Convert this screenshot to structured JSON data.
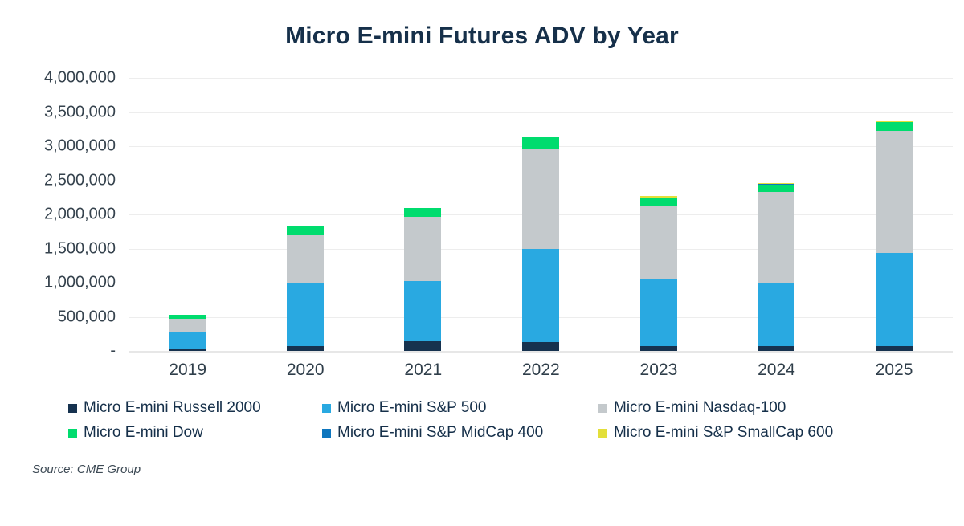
{
  "source": "Source: CME Group",
  "chart_data": {
    "type": "bar",
    "stacked": true,
    "title": "Micro E-mini Futures ADV by Year",
    "xlabel": "",
    "ylabel": "",
    "ylim": [
      0,
      4000000
    ],
    "grid": true,
    "legend_position": "bottom",
    "categories": [
      "2019",
      "2020",
      "2021",
      "2022",
      "2023",
      "2024",
      "2025"
    ],
    "yticks": [
      {
        "value": 4000000,
        "label": "4,000,000"
      },
      {
        "value": 3500000,
        "label": "3,500,000"
      },
      {
        "value": 3000000,
        "label": "3,000,000"
      },
      {
        "value": 2500000,
        "label": "2,500,000"
      },
      {
        "value": 2000000,
        "label": "2,000,000"
      },
      {
        "value": 1500000,
        "label": "1,500,000"
      },
      {
        "value": 1000000,
        "label": "1,000,000"
      },
      {
        "value": 500000,
        "label": "500,000"
      },
      {
        "value": 0,
        "label": "-"
      }
    ],
    "series": [
      {
        "name": "Micro E-mini Russell 2000",
        "color": "#16324f",
        "values": [
          25000,
          75000,
          140000,
          130000,
          75000,
          70000,
          70000
        ]
      },
      {
        "name": "Micro E-mini S&P 500",
        "color": "#29a9e1",
        "values": [
          255000,
          915000,
          885000,
          1360000,
          985000,
          920000,
          1370000
        ]
      },
      {
        "name": "Micro E-mini Nasdaq-100",
        "color": "#c4c9cc",
        "values": [
          190000,
          700000,
          935000,
          1480000,
          1070000,
          1340000,
          1780000
        ]
      },
      {
        "name": "Micro E-mini Dow",
        "color": "#00dc6e",
        "values": [
          55000,
          140000,
          135000,
          165000,
          115000,
          110000,
          130000
        ]
      },
      {
        "name": "Micro E-mini S&P MidCap 400",
        "color": "#0e76be",
        "values": [
          0,
          0,
          0,
          0,
          5000,
          5000,
          5000
        ]
      },
      {
        "name": "Micro E-mini S&P SmallCap 600",
        "color": "#e3df3a",
        "values": [
          0,
          0,
          0,
          0,
          25000,
          12000,
          15000
        ]
      }
    ],
    "totals": [
      525000,
      1830000,
      2095000,
      3135000,
      2275000,
      2457000,
      3370000
    ]
  }
}
